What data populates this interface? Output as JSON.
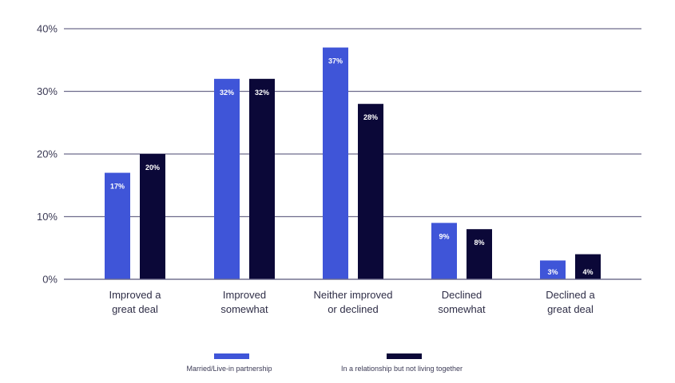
{
  "chart_data": {
    "type": "bar",
    "title": "",
    "xlabel": "",
    "ylabel": "",
    "ylim": [
      0,
      40
    ],
    "yticks": [
      0,
      10,
      20,
      30,
      40
    ],
    "ytick_labels": [
      "0%",
      "10%",
      "20%",
      "30%",
      "40%"
    ],
    "grid": true,
    "legend_position": "bottom",
    "categories": [
      [
        "Improved a",
        "great deal"
      ],
      [
        "Improved",
        "somewhat"
      ],
      [
        "Neither improved",
        "or declined"
      ],
      [
        "Declined",
        "somewhat"
      ],
      [
        "Declined a",
        "great deal"
      ]
    ],
    "series": [
      {
        "name": "Married/Live-in partnership",
        "color": "#3f55d8",
        "values": [
          17,
          32,
          37,
          9,
          3
        ],
        "labels": [
          "17%",
          "32%",
          "37%",
          "9%",
          "3%"
        ]
      },
      {
        "name": "In a relationship but not living together",
        "color": "#0b0838",
        "values": [
          20,
          32,
          28,
          8,
          4
        ],
        "labels": [
          "20%",
          "32%",
          "28%",
          "8%",
          "4%"
        ]
      }
    ]
  }
}
